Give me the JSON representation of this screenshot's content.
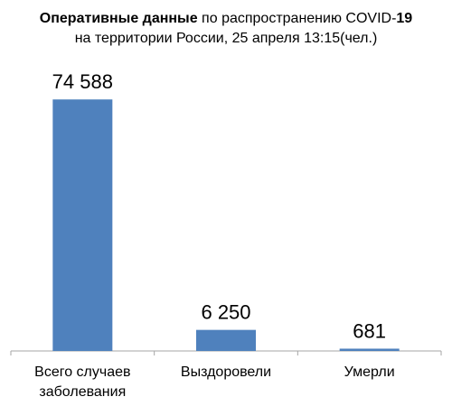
{
  "title": {
    "line1_bold1": "Оперативные данные",
    "line1_normal": " по распространению COVID-",
    "line1_bold2": "19",
    "line2": "на территории России, 25 апреля 13:15(чел.)"
  },
  "chart_data": {
    "type": "bar",
    "categories": [
      "Всего случаев заболевания",
      "Выздоровели",
      "Умерли"
    ],
    "category_lines": [
      [
        "Всего случаев",
        "заболевания"
      ],
      [
        "Выздоровели"
      ],
      [
        "Умерли"
      ]
    ],
    "values": [
      74588,
      6250,
      681
    ],
    "value_labels": [
      "74 588",
      "6 250",
      "681"
    ],
    "bar_color": "#4f81bd",
    "axis_color": "#a6a6a6",
    "ylim": [
      0,
      80000
    ],
    "grid": false,
    "legend": "none"
  }
}
